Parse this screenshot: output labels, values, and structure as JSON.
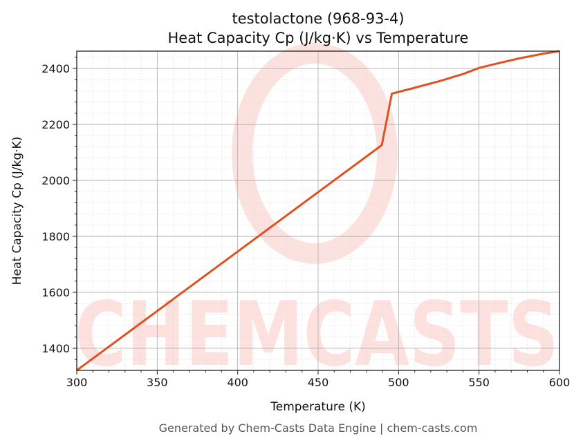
{
  "chart_data": {
    "type": "line",
    "title_line1": "testolactone (968-93-4)",
    "title_line2": "Heat Capacity Cp (J/kg·K) vs Temperature",
    "xlabel": "Temperature (K)",
    "ylabel": "Heat Capacity Cp (J/kg·K)",
    "xlim": [
      300,
      600
    ],
    "ylim": [
      1321,
      2462
    ],
    "xticks": [
      300,
      350,
      400,
      450,
      500,
      550,
      600
    ],
    "yticks": [
      1400,
      1600,
      1800,
      2000,
      2200,
      2400
    ],
    "grid": true,
    "series": [
      {
        "name": "Cp",
        "color": "#e05020",
        "x": [
          300,
          489.6,
          495.8,
          510,
          525,
          540,
          550,
          560,
          575,
          590,
          600
        ],
        "y": [
          1321,
          2126,
          2310,
          2331,
          2354,
          2380,
          2402,
          2416,
          2436,
          2453,
          2462
        ]
      }
    ]
  },
  "watermark": "CHEMCASTS",
  "footer": "Generated by Chem-Casts Data Engine | chem-casts.com"
}
